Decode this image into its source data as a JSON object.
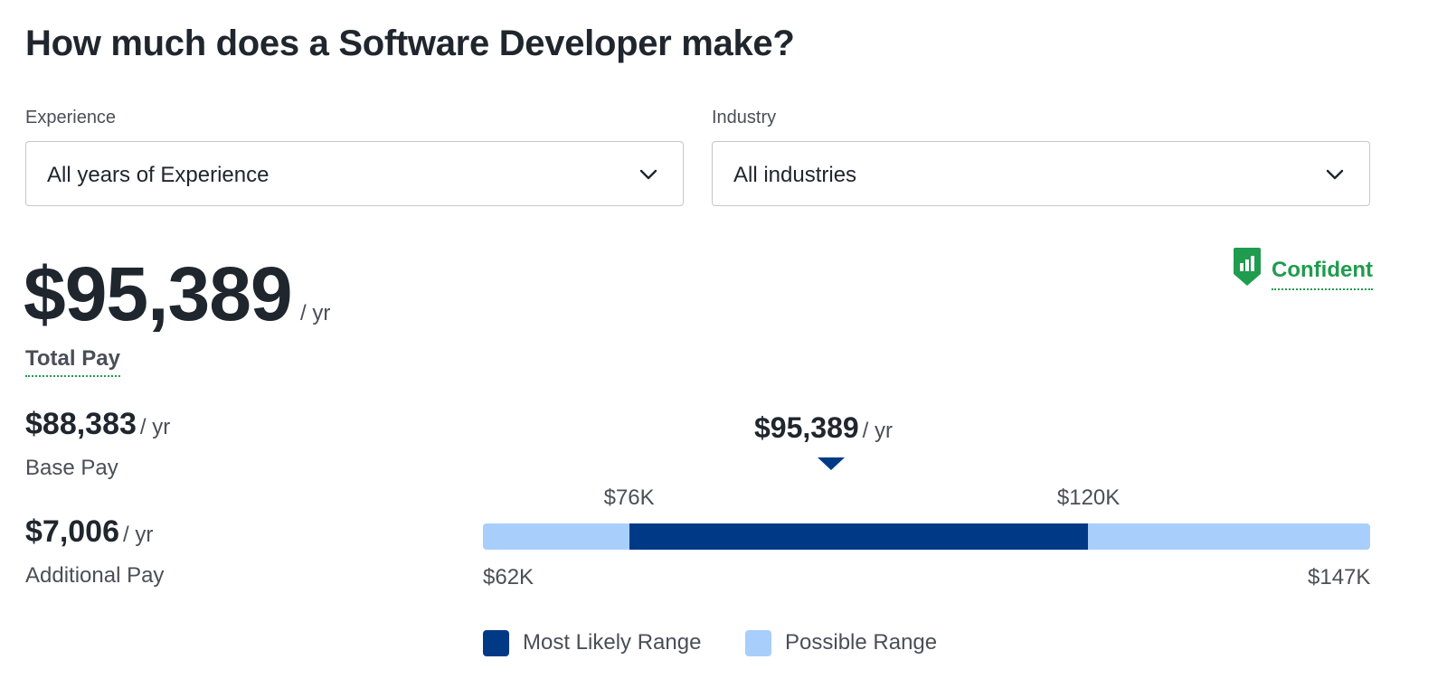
{
  "title": "How much does a Software Developer make?",
  "filters": {
    "experience": {
      "label": "Experience",
      "value": "All years of Experience"
    },
    "industry": {
      "label": "Industry",
      "value": "All industries"
    }
  },
  "confidence": {
    "label": "Confident",
    "icon": "shield-bars-icon",
    "color": "#1f9c4e"
  },
  "total_pay": {
    "amount": "$95,389",
    "unit": "/ yr",
    "label": "Total Pay"
  },
  "base_pay": {
    "amount": "$88,383",
    "unit": "/ yr",
    "label": "Base Pay"
  },
  "additional_pay": {
    "amount": "$7,006",
    "unit": "/ yr",
    "label": "Additional Pay"
  },
  "range": {
    "marker": {
      "amount": "$95,389",
      "unit": "/ yr"
    },
    "min_label": "$62K",
    "max_label": "$147K",
    "likely_low_label": "$76K",
    "likely_high_label": "$120K",
    "min": 62000,
    "max": 147000,
    "likely_low": 76000,
    "likely_high": 120000,
    "marker_value": 95389,
    "colors": {
      "likely": "#003a86",
      "possible": "#a8cefb"
    }
  },
  "legend": {
    "likely": "Most Likely Range",
    "possible": "Possible Range"
  }
}
